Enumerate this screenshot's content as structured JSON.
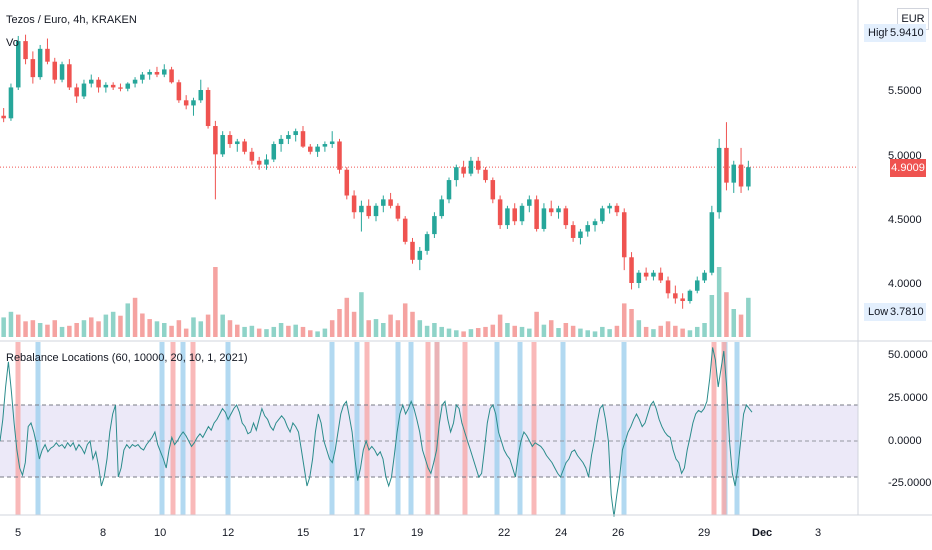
{
  "header": {
    "title": "Tezos / Euro, 4h, KRAKEN",
    "volume_label": "Vo",
    "currency": "EUR"
  },
  "price_axis": {
    "ticks": [
      "5.5000",
      "5.0000",
      "4.5000",
      "4.0000"
    ],
    "high_label": "High",
    "high_value": "5.9410",
    "low_label": "Low",
    "low_value": "3.7810",
    "current_value": "4.9009"
  },
  "indicator": {
    "label": "Rebalance Locations (60, 10000, 20, 10, 1, 2021)",
    "ticks": [
      "50.0000",
      "25.0000",
      "0.0000",
      "-25.0000"
    ],
    "upper_level": 20,
    "lower_level": -20,
    "mid_level": 0
  },
  "time_axis": {
    "labels": [
      "5",
      "8",
      "10",
      "12",
      "15",
      "17",
      "19",
      "22",
      "24",
      "26",
      "29",
      "Dec",
      "3"
    ]
  },
  "colors": {
    "up": "#26a69a",
    "down": "#ef5350",
    "up_volume": "#8fd3c8",
    "down_volume": "#f5a3a1",
    "indicator_line": "#2b8c8c",
    "band_fill": "#ece9f8",
    "blue_marker": "#9fcfee",
    "red_marker": "#f7a8a8",
    "current_line": "#ef5350"
  },
  "chart_data": [
    {
      "type": "candlestick",
      "title": "Tezos / Euro, 4h, KRAKEN",
      "ylabel": "EUR",
      "ylim": [
        3.78,
        5.95
      ],
      "grid": false,
      "current_price": 4.9009,
      "candles": [
        [
          5.3,
          5.36,
          5.25,
          5.28
        ],
        [
          5.28,
          5.55,
          5.26,
          5.52
        ],
        [
          5.52,
          5.92,
          5.5,
          5.88
        ],
        [
          5.88,
          5.93,
          5.7,
          5.74
        ],
        [
          5.74,
          5.8,
          5.55,
          5.6
        ],
        [
          5.6,
          5.85,
          5.58,
          5.82
        ],
        [
          5.82,
          5.9,
          5.7,
          5.72
        ],
        [
          5.72,
          5.75,
          5.55,
          5.58
        ],
        [
          5.58,
          5.72,
          5.56,
          5.7
        ],
        [
          5.7,
          5.74,
          5.5,
          5.52
        ],
        [
          5.52,
          5.55,
          5.4,
          5.45
        ],
        [
          5.45,
          5.58,
          5.43,
          5.55
        ],
        [
          5.55,
          5.62,
          5.52,
          5.58
        ],
        [
          5.58,
          5.6,
          5.48,
          5.52
        ],
        [
          5.52,
          5.56,
          5.48,
          5.54
        ],
        [
          5.54,
          5.56,
          5.5,
          5.52
        ],
        [
          5.52,
          5.55,
          5.49,
          5.51
        ],
        [
          5.51,
          5.56,
          5.49,
          5.55
        ],
        [
          5.55,
          5.6,
          5.52,
          5.58
        ],
        [
          5.58,
          5.64,
          5.55,
          5.62
        ],
        [
          5.62,
          5.66,
          5.58,
          5.64
        ],
        [
          5.64,
          5.68,
          5.6,
          5.62
        ],
        [
          5.62,
          5.7,
          5.6,
          5.66
        ],
        [
          5.66,
          5.68,
          5.55,
          5.56
        ],
        [
          5.56,
          5.58,
          5.4,
          5.42
        ],
        [
          5.42,
          5.46,
          5.35,
          5.38
        ],
        [
          5.38,
          5.44,
          5.3,
          5.42
        ],
        [
          5.42,
          5.58,
          5.4,
          5.5
        ],
        [
          5.5,
          5.52,
          5.2,
          5.22
        ],
        [
          5.22,
          5.26,
          4.65,
          5.0
        ],
        [
          5.0,
          5.18,
          4.98,
          5.15
        ],
        [
          5.15,
          5.18,
          5.05,
          5.08
        ],
        [
          5.08,
          5.12,
          5.02,
          5.1
        ],
        [
          5.1,
          5.12,
          5.0,
          5.02
        ],
        [
          5.02,
          5.05,
          4.92,
          4.95
        ],
        [
          4.95,
          4.98,
          4.88,
          4.92
        ],
        [
          4.92,
          5.0,
          4.88,
          4.96
        ],
        [
          4.96,
          5.1,
          4.94,
          5.08
        ],
        [
          5.08,
          5.15,
          5.02,
          5.12
        ],
        [
          5.12,
          5.18,
          5.08,
          5.15
        ],
        [
          5.15,
          5.2,
          5.1,
          5.18
        ],
        [
          5.18,
          5.22,
          5.05,
          5.06
        ],
        [
          5.06,
          5.08,
          5.0,
          5.02
        ],
        [
          5.02,
          5.08,
          4.98,
          5.06
        ],
        [
          5.06,
          5.1,
          5.02,
          5.08
        ],
        [
          5.08,
          5.18,
          5.05,
          5.1
        ],
        [
          5.1,
          5.12,
          4.85,
          4.88
        ],
        [
          4.88,
          4.9,
          4.65,
          4.68
        ],
        [
          4.68,
          4.72,
          4.5,
          4.55
        ],
        [
          4.55,
          4.64,
          4.4,
          4.6
        ],
        [
          4.6,
          4.65,
          4.5,
          4.52
        ],
        [
          4.52,
          4.62,
          4.48,
          4.6
        ],
        [
          4.6,
          4.68,
          4.55,
          4.65
        ],
        [
          4.65,
          4.7,
          4.58,
          4.6
        ],
        [
          4.6,
          4.62,
          4.48,
          4.5
        ],
        [
          4.5,
          4.52,
          4.3,
          4.32
        ],
        [
          4.32,
          4.35,
          4.15,
          4.18
        ],
        [
          4.18,
          4.28,
          4.1,
          4.25
        ],
        [
          4.25,
          4.4,
          4.22,
          4.38
        ],
        [
          4.38,
          4.55,
          4.35,
          4.52
        ],
        [
          4.52,
          4.68,
          4.5,
          4.65
        ],
        [
          4.65,
          4.82,
          4.62,
          4.8
        ],
        [
          4.8,
          4.92,
          4.75,
          4.9
        ],
        [
          4.9,
          4.95,
          4.82,
          4.85
        ],
        [
          4.85,
          4.98,
          4.83,
          4.95
        ],
        [
          4.95,
          4.98,
          4.85,
          4.88
        ],
        [
          4.88,
          4.9,
          4.78,
          4.8
        ],
        [
          4.8,
          4.82,
          4.62,
          4.65
        ],
        [
          4.65,
          4.68,
          4.42,
          4.45
        ],
        [
          4.45,
          4.6,
          4.42,
          4.58
        ],
        [
          4.58,
          4.62,
          4.45,
          4.48
        ],
        [
          4.48,
          4.62,
          4.45,
          4.6
        ],
        [
          4.6,
          4.68,
          4.55,
          4.65
        ],
        [
          4.65,
          4.68,
          4.4,
          4.42
        ],
        [
          4.42,
          4.62,
          4.4,
          4.58
        ],
        [
          4.58,
          4.64,
          4.52,
          4.55
        ],
        [
          4.55,
          4.6,
          4.5,
          4.58
        ],
        [
          4.58,
          4.6,
          4.42,
          4.45
        ],
        [
          4.45,
          4.48,
          4.32,
          4.35
        ],
        [
          4.35,
          4.42,
          4.3,
          4.4
        ],
        [
          4.4,
          4.48,
          4.36,
          4.45
        ],
        [
          4.45,
          4.5,
          4.4,
          4.48
        ],
        [
          4.48,
          4.6,
          4.46,
          4.58
        ],
        [
          4.58,
          4.62,
          4.54,
          4.6
        ],
        [
          4.6,
          4.62,
          4.52,
          4.55
        ],
        [
          4.55,
          4.58,
          4.1,
          4.2
        ],
        [
          4.2,
          4.24,
          3.95,
          4.0
        ],
        [
          4.0,
          4.1,
          3.96,
          4.08
        ],
        [
          4.08,
          4.12,
          4.02,
          4.05
        ],
        [
          4.05,
          4.1,
          4.02,
          4.08
        ],
        [
          4.08,
          4.12,
          4.0,
          4.02
        ],
        [
          4.02,
          4.05,
          3.88,
          3.92
        ],
        [
          3.92,
          3.98,
          3.84,
          3.88
        ],
        [
          3.88,
          3.92,
          3.8,
          3.86
        ],
        [
          3.86,
          3.95,
          3.84,
          3.94
        ],
        [
          3.94,
          4.05,
          3.92,
          4.02
        ],
        [
          4.02,
          4.1,
          4.0,
          4.08
        ],
        [
          4.08,
          4.6,
          4.06,
          4.55
        ],
        [
          4.55,
          5.12,
          4.5,
          5.05
        ],
        [
          5.05,
          5.25,
          4.72,
          4.78
        ],
        [
          4.78,
          4.95,
          4.7,
          4.92
        ],
        [
          4.92,
          5.05,
          4.7,
          4.75
        ],
        [
          4.75,
          4.95,
          4.72,
          4.9
        ]
      ],
      "volumes": [
        [
          35,
          1
        ],
        [
          45,
          1
        ],
        [
          40,
          0
        ],
        [
          28,
          0
        ],
        [
          30,
          0
        ],
        [
          25,
          1
        ],
        [
          22,
          0
        ],
        [
          30,
          0
        ],
        [
          18,
          1
        ],
        [
          20,
          0
        ],
        [
          25,
          0
        ],
        [
          30,
          1
        ],
        [
          35,
          0
        ],
        [
          28,
          0
        ],
        [
          40,
          1
        ],
        [
          45,
          1
        ],
        [
          38,
          0
        ],
        [
          60,
          1
        ],
        [
          70,
          0
        ],
        [
          42,
          0
        ],
        [
          32,
          0
        ],
        [
          28,
          1
        ],
        [
          25,
          1
        ],
        [
          20,
          0
        ],
        [
          30,
          0
        ],
        [
          15,
          0
        ],
        [
          35,
          1
        ],
        [
          28,
          1
        ],
        [
          40,
          0
        ],
        [
          125,
          0
        ],
        [
          40,
          1
        ],
        [
          30,
          0
        ],
        [
          22,
          0
        ],
        [
          18,
          1
        ],
        [
          20,
          1
        ],
        [
          15,
          0
        ],
        [
          14,
          1
        ],
        [
          18,
          1
        ],
        [
          25,
          1
        ],
        [
          20,
          0
        ],
        [
          22,
          1
        ],
        [
          18,
          0
        ],
        [
          12,
          0
        ],
        [
          10,
          1
        ],
        [
          15,
          1
        ],
        [
          30,
          0
        ],
        [
          50,
          0
        ],
        [
          70,
          0
        ],
        [
          45,
          0
        ],
        [
          80,
          1
        ],
        [
          30,
          0
        ],
        [
          32,
          1
        ],
        [
          25,
          1
        ],
        [
          40,
          0
        ],
        [
          30,
          0
        ],
        [
          60,
          0
        ],
        [
          45,
          0
        ],
        [
          30,
          1
        ],
        [
          20,
          1
        ],
        [
          25,
          1
        ],
        [
          18,
          1
        ],
        [
          15,
          1
        ],
        [
          12,
          1
        ],
        [
          10,
          0
        ],
        [
          14,
          1
        ],
        [
          16,
          0
        ],
        [
          18,
          0
        ],
        [
          22,
          0
        ],
        [
          40,
          0
        ],
        [
          25,
          1
        ],
        [
          20,
          0
        ],
        [
          18,
          1
        ],
        [
          15,
          1
        ],
        [
          45,
          0
        ],
        [
          22,
          1
        ],
        [
          30,
          0
        ],
        [
          16,
          1
        ],
        [
          25,
          0
        ],
        [
          20,
          0
        ],
        [
          15,
          1
        ],
        [
          12,
          1
        ],
        [
          10,
          1
        ],
        [
          18,
          1
        ],
        [
          14,
          1
        ],
        [
          20,
          0
        ],
        [
          60,
          0
        ],
        [
          50,
          0
        ],
        [
          30,
          1
        ],
        [
          18,
          0
        ],
        [
          14,
          1
        ],
        [
          20,
          0
        ],
        [
          28,
          0
        ],
        [
          20,
          0
        ],
        [
          15,
          0
        ],
        [
          12,
          1
        ],
        [
          18,
          1
        ],
        [
          25,
          1
        ],
        [
          75,
          1
        ],
        [
          125,
          1
        ],
        [
          80,
          0
        ],
        [
          50,
          1
        ],
        [
          40,
          0
        ],
        [
          70,
          1
        ]
      ]
    },
    {
      "type": "line",
      "title": "Rebalance Locations (60, 10000, 20, 10, 1, 2021)",
      "ylim": [
        -38,
        58
      ],
      "y": [
        0,
        12,
        30,
        44,
        28,
        10,
        -5,
        -15,
        -19,
        -12,
        8,
        10,
        5,
        -2,
        -10,
        -5,
        -2,
        -6,
        -4,
        -3,
        -1,
        -3,
        -2,
        -4,
        -1,
        -3,
        -1,
        -5,
        -2,
        -4,
        -7,
        -2,
        0,
        -10,
        -6,
        -14,
        -25,
        -20,
        -10,
        5,
        15,
        20,
        -20,
        -15,
        -5,
        -2,
        -4,
        -2,
        -3,
        -2,
        -4,
        -5,
        -2,
        0,
        2,
        5,
        -2,
        -6,
        -10,
        -15,
        -5,
        2,
        -2,
        0,
        3,
        5,
        3,
        0,
        -3,
        -1,
        2,
        4,
        2,
        5,
        8,
        6,
        10,
        12,
        15,
        18,
        16,
        12,
        15,
        18,
        20,
        16,
        10,
        8,
        4,
        5,
        10,
        6,
        12,
        18,
        14,
        12,
        8,
        6,
        10,
        12,
        14,
        12,
        8,
        5,
        10,
        8,
        5,
        -5,
        -15,
        -25,
        -20,
        -10,
        5,
        15,
        10,
        0,
        -5,
        -10,
        -12,
        -5,
        5,
        15,
        20,
        22,
        14,
        5,
        -10,
        -22,
        -15,
        -5,
        0,
        -5,
        -3,
        -5,
        -8,
        -6,
        -10,
        -20,
        -25,
        -20,
        -8,
        5,
        15,
        20,
        15,
        18,
        22,
        18,
        12,
        5,
        -5,
        -10,
        -15,
        -18,
        -12,
        -5,
        10,
        20,
        22,
        12,
        5,
        10,
        20,
        18,
        10,
        5,
        0,
        -5,
        -10,
        -15,
        -20,
        -18,
        -5,
        10,
        18,
        20,
        15,
        5,
        0,
        -5,
        -8,
        -10,
        -15,
        -20,
        -8,
        0,
        5,
        3,
        0,
        -3,
        -1,
        -2,
        -3,
        -5,
        -8,
        -10,
        -12,
        -15,
        -18,
        -20,
        -16,
        -12,
        -10,
        -6,
        -5,
        -8,
        -10,
        -12,
        -15,
        -20,
        -8,
        0,
        10,
        18,
        20,
        12,
        0,
        -30,
        -42,
        -30,
        -20,
        -5,
        0,
        5,
        8,
        12,
        15,
        12,
        8,
        10,
        15,
        20,
        22,
        18,
        12,
        8,
        5,
        3,
        2,
        -5,
        -10,
        -12,
        -18,
        -15,
        -5,
        2,
        10,
        15,
        17,
        16,
        18,
        22,
        35,
        52,
        45,
        30,
        40,
        50,
        30,
        0,
        -18,
        -25,
        -15,
        0,
        15,
        20,
        18,
        16
      ],
      "upper_level": 20,
      "lower_level": -20,
      "mid_level": 0,
      "blue_marker_positions": [
        38,
        162,
        183,
        228,
        332,
        357,
        398,
        411,
        437,
        497,
        520,
        563,
        624,
        725,
        737
      ],
      "red_marker_positions": [
        18,
        173,
        193,
        367,
        428,
        437,
        465,
        534,
        714,
        724
      ]
    }
  ]
}
